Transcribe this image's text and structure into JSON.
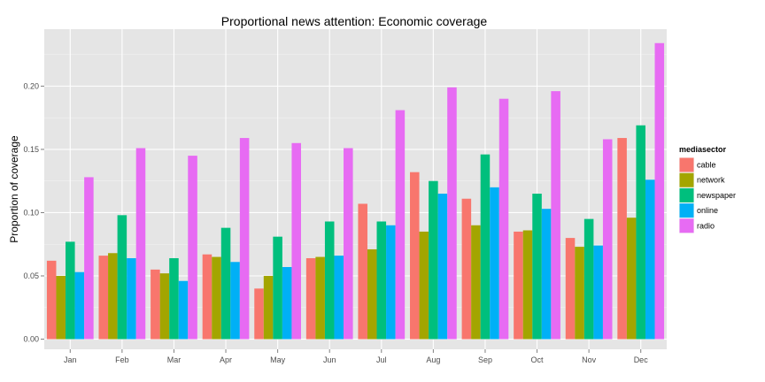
{
  "chart_data": {
    "type": "bar",
    "title": "Proportional news attention: Economic coverage",
    "xlabel": "",
    "ylabel": "Proportion of coverage",
    "categories": [
      "Jan",
      "Feb",
      "Mar",
      "Apr",
      "May",
      "Jun",
      "Jul",
      "Aug",
      "Sep",
      "Oct",
      "Nov",
      "Dec"
    ],
    "ylim": [
      -0.008,
      0.245
    ],
    "yticks": [
      0.0,
      0.05,
      0.1,
      0.15,
      0.2
    ],
    "ytick_labels": [
      "0.00",
      "0.05",
      "0.10",
      "0.15",
      "0.20"
    ],
    "grid": true,
    "legend": {
      "title": "mediasector",
      "position": "right"
    },
    "series": [
      {
        "name": "cable",
        "color": "#F8766D",
        "values": [
          0.062,
          0.066,
          0.055,
          0.067,
          0.04,
          0.064,
          0.107,
          0.132,
          0.111,
          0.085,
          0.08,
          0.159
        ]
      },
      {
        "name": "network",
        "color": "#A3A500",
        "values": [
          0.05,
          0.068,
          0.052,
          0.065,
          0.05,
          0.065,
          0.071,
          0.085,
          0.09,
          0.086,
          0.073,
          0.096
        ]
      },
      {
        "name": "newspaper",
        "color": "#00BF7D",
        "values": [
          0.077,
          0.098,
          0.064,
          0.088,
          0.081,
          0.093,
          0.093,
          0.125,
          0.146,
          0.115,
          0.095,
          0.169
        ]
      },
      {
        "name": "online",
        "color": "#00B0F6",
        "values": [
          0.053,
          0.064,
          0.046,
          0.061,
          0.057,
          0.066,
          0.09,
          0.115,
          0.12,
          0.103,
          0.074,
          0.126
        ]
      },
      {
        "name": "radio",
        "color": "#E76BF3",
        "values": [
          0.128,
          0.151,
          0.145,
          0.159,
          0.155,
          0.151,
          0.181,
          0.199,
          0.19,
          0.196,
          0.158,
          0.234
        ]
      }
    ]
  }
}
